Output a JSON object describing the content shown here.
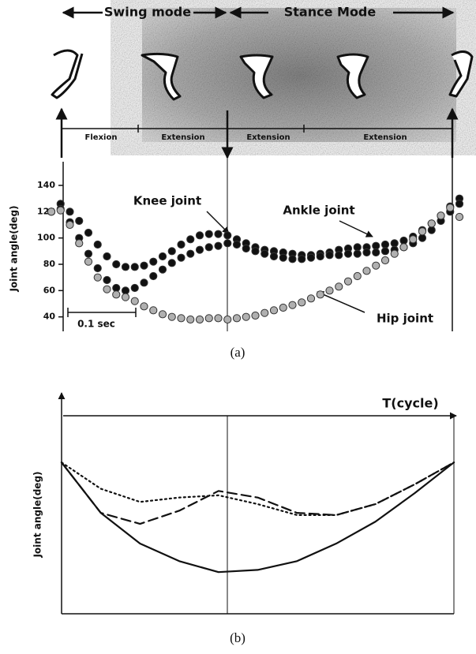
{
  "diagram": {
    "swing": "Swing mode",
    "stance": "Stance Mode",
    "phases": [
      "Flexion",
      "Extension",
      "Extension",
      "Extension"
    ]
  },
  "chart_data": [
    {
      "type": "scatter",
      "ylabel": "Joint angle(deg)",
      "caption": "(a)",
      "annotations": [
        "0.1 sec"
      ],
      "x": [
        0,
        1,
        2,
        3,
        4,
        5,
        6,
        7,
        8,
        9,
        10,
        11,
        12,
        13,
        14,
        15,
        16,
        17,
        18,
        19,
        20,
        21,
        22,
        23,
        24,
        25,
        26,
        27,
        28,
        29,
        30,
        31,
        32,
        33,
        34,
        35,
        36,
        37,
        38,
        39,
        40,
        41,
        42,
        43,
        44
      ],
      "xlim": [
        0,
        44
      ],
      "ylim": [
        32,
        158
      ],
      "yticks": [
        40,
        60,
        80,
        100,
        120,
        140
      ],
      "series": [
        {
          "name": "Knee joint",
          "color": "#111111",
          "values": [
            120,
            126,
            120,
            113,
            104,
            95,
            86,
            80,
            78,
            78,
            79,
            82,
            86,
            90,
            95,
            99,
            102,
            103,
            103,
            102,
            99,
            96,
            93,
            91,
            90,
            89,
            88,
            87,
            87,
            88,
            89,
            91,
            92,
            93,
            93,
            94,
            95,
            96,
            98,
            101,
            106,
            111,
            117,
            124,
            130
          ]
        },
        {
          "name": "Ankle joint",
          "color": "#111111",
          "values": [
            120,
            122,
            112,
            100,
            88,
            77,
            68,
            62,
            60,
            62,
            66,
            71,
            76,
            81,
            85,
            88,
            91,
            93,
            94,
            96,
            95,
            92,
            90,
            88,
            86,
            85,
            84,
            84,
            85,
            86,
            87,
            87,
            88,
            88,
            89,
            89,
            90,
            91,
            93,
            96,
            100,
            106,
            113,
            120,
            126
          ]
        },
        {
          "name": "Hip joint",
          "color": "#b0b0b0",
          "values": [
            120,
            121,
            110,
            96,
            82,
            70,
            61,
            57,
            55,
            52,
            48,
            45,
            42,
            40,
            39,
            38,
            38,
            39,
            39,
            38,
            39,
            40,
            41,
            43,
            45,
            47,
            49,
            51,
            54,
            57,
            60,
            63,
            67,
            71,
            75,
            79,
            83,
            88,
            93,
            99,
            105,
            111,
            117,
            123,
            116
          ]
        }
      ]
    },
    {
      "type": "line",
      "xlabel": "T(cycle)",
      "ylabel": "Joint angle(deg)",
      "caption": "(b)",
      "x": [
        0,
        1,
        2,
        3,
        4,
        5,
        6,
        7,
        8,
        9,
        10
      ],
      "xlim": [
        0,
        10
      ],
      "ylim": [
        0,
        100
      ],
      "series": [
        {
          "color": "#111111",
          "dash": "solid",
          "values": [
            69,
            46,
            32,
            24,
            19,
            20,
            24,
            32,
            42,
            55,
            69
          ]
        },
        {
          "color": "#111111",
          "dash": "dashed",
          "values": [
            69,
            46,
            41,
            47,
            56,
            53,
            46,
            45,
            50,
            59,
            69
          ]
        },
        {
          "color": "#111111",
          "dash": "dotted",
          "values": [
            69,
            57,
            51,
            53,
            54,
            50,
            45,
            45,
            50,
            59,
            69
          ]
        }
      ]
    }
  ]
}
